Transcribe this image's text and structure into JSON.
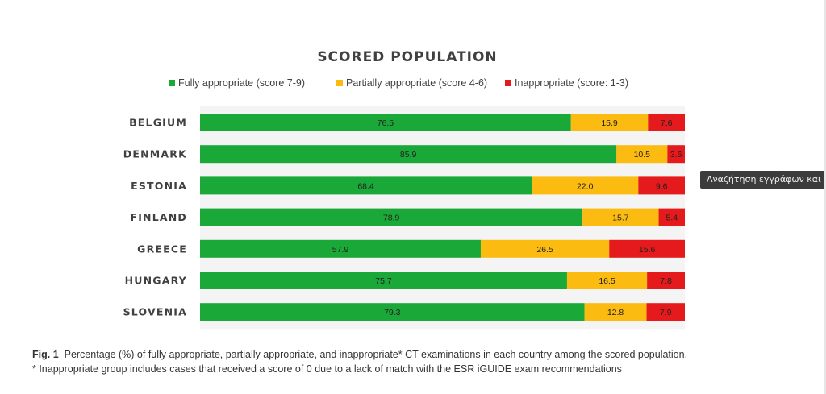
{
  "chart_data": {
    "type": "bar",
    "orientation": "horizontal",
    "stacked": true,
    "title": "SCORED POPULATION",
    "categories": [
      "BELGIUM",
      "DENMARK",
      "ESTONIA",
      "FINLAND",
      "GREECE",
      "HUNGARY",
      "SLOVENIA"
    ],
    "series": [
      {
        "name": "Fully appropriate (score 7-9)",
        "color": "#1aa838",
        "values": [
          76.5,
          85.9,
          68.4,
          78.9,
          57.9,
          75.7,
          79.3
        ]
      },
      {
        "name": "Partially appropriate (score 4-6)",
        "color": "#fbbb10",
        "values": [
          15.9,
          10.5,
          22.0,
          15.7,
          26.5,
          16.5,
          12.8
        ]
      },
      {
        "name": "Inappropriate (score: 1-3)",
        "color": "#e41a1c",
        "values": [
          7.6,
          3.6,
          9.6,
          5.4,
          15.6,
          7.8,
          7.9
        ]
      }
    ],
    "xlim": [
      0,
      100
    ],
    "legend_position": "top",
    "grid": false
  },
  "caption": {
    "fig_label": "Fig. 1",
    "text": "Percentage (%) of fully appropriate, partially appropriate, and inappropriate* CT examinations in each country among the scored population.",
    "footnote": "* Inappropriate group includes cases that received a score of 0 due to a lack of match with the ESR iGUIDE exam recommendations"
  },
  "tooltip": {
    "text": "Αναζήτηση εγγράφων και c"
  }
}
